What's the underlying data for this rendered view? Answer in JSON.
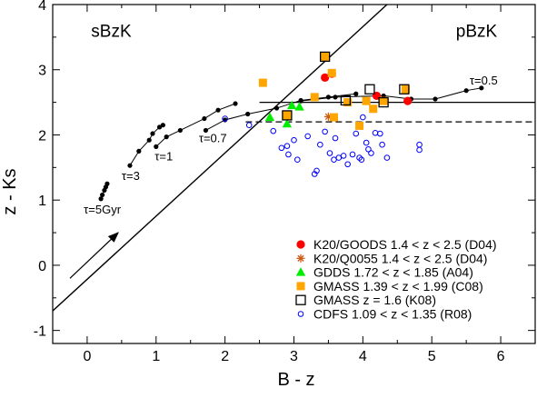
{
  "chart_data": {
    "type": "scatter",
    "xlabel": "B - z",
    "ylabel": "z - Ks",
    "xlim": [
      -0.5,
      6.5
    ],
    "ylim": [
      -1.2,
      4.0
    ],
    "xticks": [
      0,
      1,
      2,
      3,
      4,
      5,
      6
    ],
    "yticks": [
      -1,
      0,
      1,
      2,
      3,
      4
    ],
    "region_labels": [
      {
        "text": "sBzK",
        "x": 0.35,
        "y": 3.6
      },
      {
        "text": "pBzK",
        "x": 5.65,
        "y": 3.6
      }
    ],
    "lines": {
      "diagonal": {
        "x": [
          -0.5,
          4.35
        ],
        "y": [
          -0.7,
          4.0
        ],
        "style": "solid"
      },
      "horizontal_solid": {
        "x": [
          2.5,
          6.5
        ],
        "y": [
          2.5,
          2.5
        ],
        "style": "solid"
      },
      "horizontal_dashed": {
        "x": [
          2.3,
          6.5
        ],
        "y": [
          2.2,
          2.2
        ],
        "style": "dashed"
      }
    },
    "arrow": {
      "x1": -0.25,
      "y1": -0.2,
      "x2": 0.45,
      "y2": 0.5
    },
    "tracks": [
      {
        "label": "τ=5Gyr",
        "points": [
          [
            0.2,
            1.02
          ],
          [
            0.22,
            1.08
          ],
          [
            0.25,
            1.15
          ],
          [
            0.27,
            1.2
          ],
          [
            0.29,
            1.25
          ]
        ]
      },
      {
        "label": "τ=3",
        "points": [
          [
            0.62,
            1.53
          ],
          [
            0.75,
            1.75
          ],
          [
            0.9,
            1.92
          ],
          [
            0.95,
            2.02
          ],
          [
            1.05,
            2.12
          ],
          [
            1.1,
            2.15
          ]
        ]
      },
      {
        "label": "τ=1",
        "points": [
          [
            1.0,
            1.82
          ],
          [
            1.15,
            1.97
          ],
          [
            1.35,
            2.07
          ],
          [
            1.7,
            2.25
          ],
          [
            1.9,
            2.38
          ],
          [
            2.15,
            2.48
          ]
        ]
      },
      {
        "label": "τ=0.7",
        "points": [
          [
            1.72,
            2.07
          ],
          [
            2.0,
            2.23
          ],
          [
            2.33,
            2.32
          ],
          [
            2.75,
            2.41
          ],
          [
            3.1,
            2.53
          ],
          [
            3.5,
            2.58
          ],
          [
            3.9,
            2.63
          ]
        ]
      },
      {
        "label": "τ=0.5",
        "points": [
          [
            3.1,
            2.52
          ],
          [
            3.6,
            2.58
          ],
          [
            4.3,
            2.6
          ],
          [
            4.7,
            2.55
          ],
          [
            5.05,
            2.55
          ],
          [
            5.5,
            2.68
          ],
          [
            5.72,
            2.72
          ]
        ]
      }
    ],
    "track_label_positions": [
      {
        "label": "τ=5Gyr",
        "x": -0.05,
        "y": 0.86
      },
      {
        "label": "τ=3",
        "x": 0.5,
        "y": 1.38
      },
      {
        "label": "τ=1",
        "x": 0.98,
        "y": 1.68
      },
      {
        "label": "τ=0.7",
        "x": 1.62,
        "y": 1.96
      },
      {
        "label": "τ=0.5",
        "x": 5.55,
        "y": 2.84
      }
    ],
    "series": [
      {
        "name": "K20/GOODS 1.4 < z < 2.5 (D04)",
        "marker": "filled-circle",
        "color": "#ff0000",
        "points": [
          [
            3.45,
            2.88
          ],
          [
            3.55,
            2.94
          ],
          [
            4.2,
            2.6
          ],
          [
            4.65,
            2.52
          ]
        ]
      },
      {
        "name": "K20/Q0055 1.4 < z < 2.5 (D04)",
        "marker": "asterisk",
        "color": "#cc5a14",
        "points": [
          [
            3.5,
            2.28
          ]
        ]
      },
      {
        "name": "GDDS 1.72 < z < 1.85 (A04)",
        "marker": "filled-triangle",
        "color": "#00ee00",
        "points": [
          [
            2.65,
            2.27
          ],
          [
            2.9,
            2.17
          ],
          [
            2.97,
            2.45
          ],
          [
            3.08,
            2.43
          ]
        ]
      },
      {
        "name": "GMASS 1.39 < z < 1.99 (C08)",
        "marker": "filled-square",
        "color": "#ffa500",
        "points": [
          [
            2.55,
            2.8
          ],
          [
            2.9,
            2.3
          ],
          [
            3.3,
            2.58
          ],
          [
            3.45,
            3.2
          ],
          [
            3.55,
            2.95
          ],
          [
            3.58,
            2.27
          ],
          [
            3.78,
            2.5
          ],
          [
            3.95,
            2.14
          ],
          [
            4.05,
            2.52
          ],
          [
            4.15,
            2.4
          ],
          [
            4.3,
            2.52
          ],
          [
            4.62,
            2.7
          ]
        ]
      },
      {
        "name": "GMASS z = 1.6 (K08)",
        "marker": "open-square",
        "color": "#000000",
        "points": [
          [
            2.9,
            2.3
          ],
          [
            3.45,
            3.2
          ],
          [
            3.75,
            2.53
          ],
          [
            4.1,
            2.7
          ],
          [
            4.3,
            2.5
          ],
          [
            4.6,
            2.7
          ]
        ]
      },
      {
        "name": "CDFS 1.09 < z < 1.35 (R08)",
        "marker": "open-circle",
        "color": "#0000ff",
        "points": [
          [
            2.0,
            2.25
          ],
          [
            2.35,
            2.15
          ],
          [
            2.7,
            2.06
          ],
          [
            2.82,
            1.8
          ],
          [
            2.9,
            1.83
          ],
          [
            2.92,
            1.7
          ],
          [
            3.0,
            1.92
          ],
          [
            3.05,
            1.62
          ],
          [
            3.2,
            1.98
          ],
          [
            3.3,
            1.4
          ],
          [
            3.33,
            1.45
          ],
          [
            3.38,
            1.85
          ],
          [
            3.45,
            2.05
          ],
          [
            3.52,
            1.72
          ],
          [
            3.58,
            1.62
          ],
          [
            3.6,
            1.95
          ],
          [
            3.65,
            1.65
          ],
          [
            3.72,
            1.68
          ],
          [
            3.78,
            1.55
          ],
          [
            3.85,
            1.7
          ],
          [
            3.9,
            2.02
          ],
          [
            3.98,
            1.62
          ],
          [
            3.95,
            1.65
          ],
          [
            4.0,
            2.27
          ],
          [
            4.05,
            1.88
          ],
          [
            4.08,
            1.78
          ],
          [
            4.12,
            1.72
          ],
          [
            4.18,
            2.03
          ],
          [
            4.25,
            2.02
          ],
          [
            4.28,
            1.85
          ],
          [
            4.35,
            1.65
          ],
          [
            4.82,
            1.85
          ],
          [
            4.82,
            1.77
          ]
        ]
      }
    ],
    "legend_position": "bottom-right",
    "grid": false
  }
}
